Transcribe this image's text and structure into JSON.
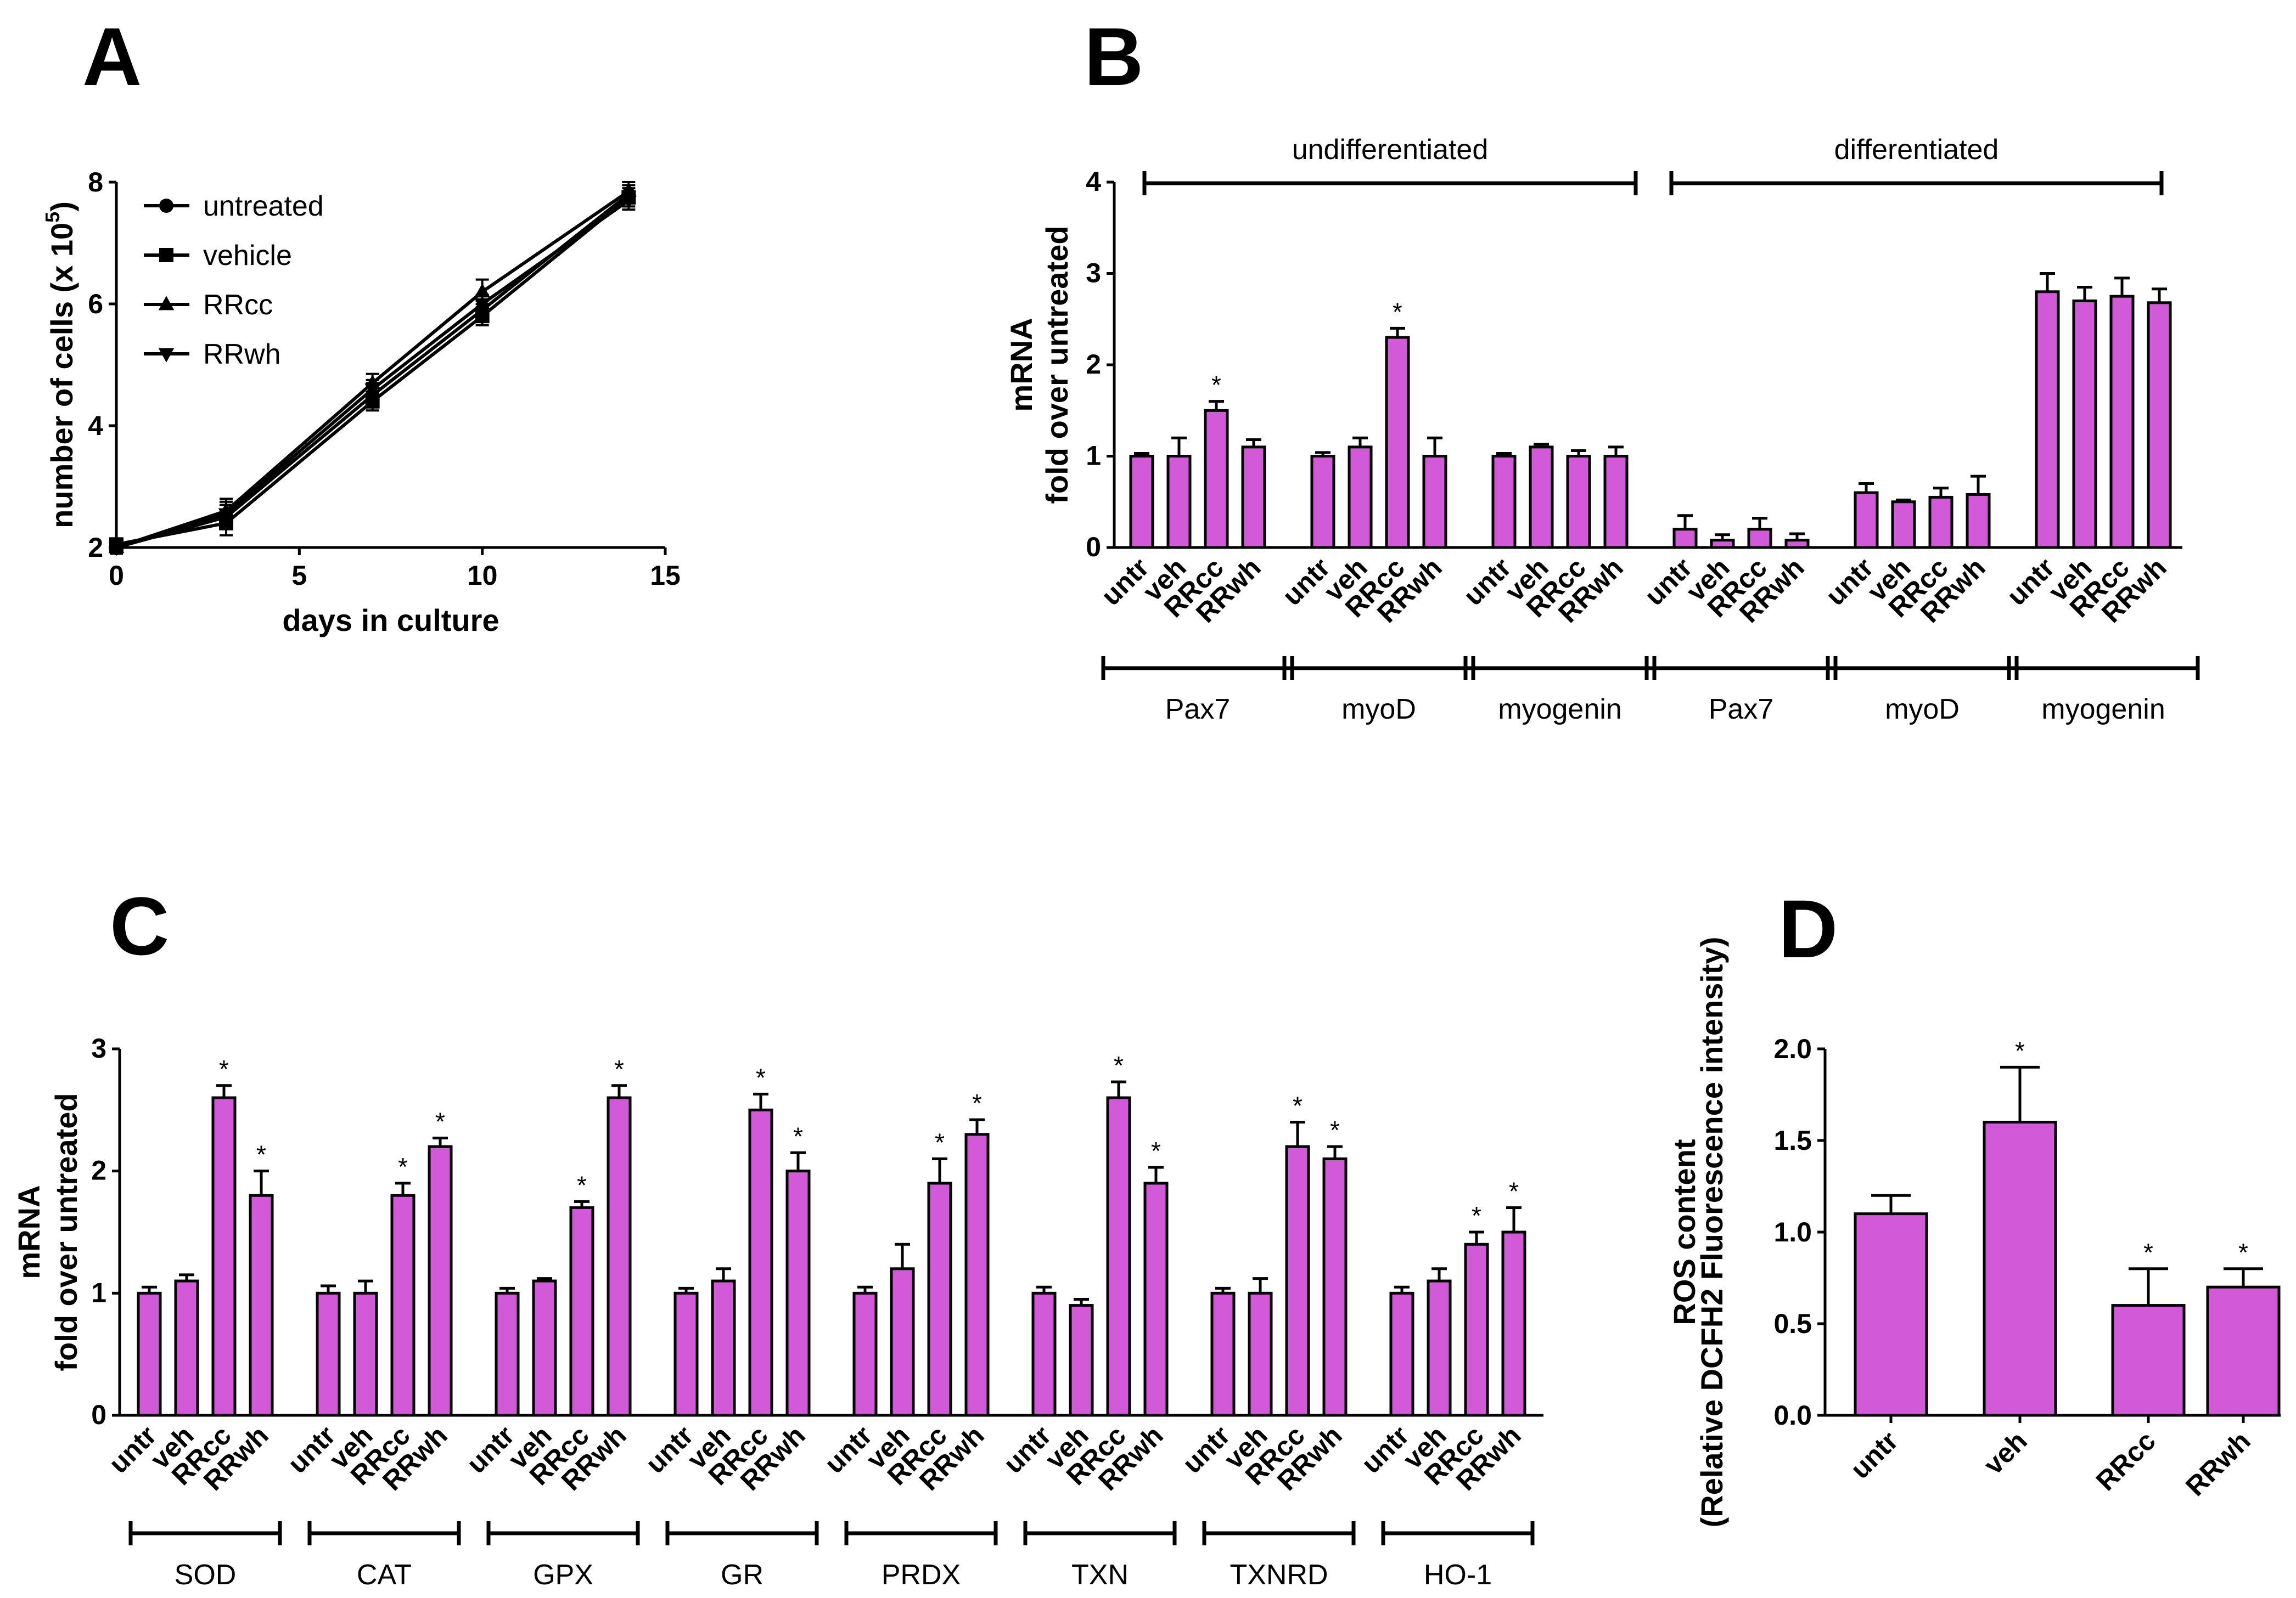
{
  "colors": {
    "bar": "#d25ad8",
    "stroke": "#000000",
    "background": "#ffffff"
  },
  "chart_data": [
    {
      "panel": "A",
      "type": "line",
      "xlabel": "days in culture",
      "ylabel": "number of cells (x 10",
      "ylabel_sup": "5",
      "ylabel_end": ")",
      "xlim": [
        0,
        15
      ],
      "ylim": [
        2,
        8
      ],
      "xticks": [
        0,
        5,
        10,
        15
      ],
      "yticks": [
        2,
        4,
        6,
        8
      ],
      "legend_position": "top-left",
      "series": [
        {
          "name": "untreated",
          "marker": "circle",
          "x": [
            0,
            3,
            7,
            10,
            14
          ],
          "y": [
            2.0,
            2.5,
            4.5,
            5.9,
            7.8
          ],
          "err": [
            0.1,
            0.2,
            0.2,
            0.15,
            0.15
          ]
        },
        {
          "name": "vehicle",
          "marker": "square",
          "x": [
            0,
            3,
            7,
            10,
            14
          ],
          "y": [
            2.05,
            2.4,
            4.4,
            5.8,
            7.75
          ],
          "err": [
            0.1,
            0.2,
            0.15,
            0.15,
            0.15
          ]
        },
        {
          "name": "RRcc",
          "marker": "triangle-up",
          "x": [
            0,
            3,
            7,
            10,
            14
          ],
          "y": [
            2.0,
            2.6,
            4.7,
            6.2,
            7.85
          ],
          "err": [
            0.1,
            0.2,
            0.15,
            0.2,
            0.15
          ]
        },
        {
          "name": "RRwh",
          "marker": "triangle-down",
          "x": [
            0,
            3,
            7,
            10,
            14
          ],
          "y": [
            2.0,
            2.55,
            4.6,
            6.0,
            7.7
          ],
          "err": [
            0.1,
            0.2,
            0.15,
            0.15,
            0.15
          ]
        }
      ]
    },
    {
      "panel": "B",
      "type": "bar",
      "ylabel_line1": "mRNA",
      "ylabel_line2": "fold over untreated",
      "ylim": [
        0,
        4
      ],
      "yticks": [
        0,
        1,
        2,
        3,
        4
      ],
      "conditions": [
        "untr",
        "veh",
        "RRcc",
        "RRwh"
      ],
      "super_groups": [
        "undifferentiated",
        "differentiated"
      ],
      "groups": [
        {
          "name": "Pax7",
          "values": [
            1.0,
            1.0,
            1.5,
            1.1
          ],
          "errors": [
            0.03,
            0.2,
            0.1,
            0.08
          ],
          "sig": [
            false,
            false,
            true,
            false
          ]
        },
        {
          "name": "myoD",
          "values": [
            1.0,
            1.1,
            2.3,
            1.0
          ],
          "errors": [
            0.04,
            0.1,
            0.1,
            0.2
          ],
          "sig": [
            false,
            false,
            true,
            false
          ]
        },
        {
          "name": "myogenin",
          "values": [
            1.0,
            1.1,
            1.0,
            1.0
          ],
          "errors": [
            0.03,
            0.03,
            0.06,
            0.1
          ],
          "sig": [
            false,
            false,
            false,
            false
          ]
        },
        {
          "name": "Pax7",
          "values": [
            0.2,
            0.08,
            0.2,
            0.08
          ],
          "errors": [
            0.15,
            0.06,
            0.12,
            0.07
          ],
          "sig": [
            false,
            false,
            false,
            false
          ]
        },
        {
          "name": "myoD",
          "values": [
            0.6,
            0.5,
            0.55,
            0.58
          ],
          "errors": [
            0.1,
            0.02,
            0.1,
            0.2
          ],
          "sig": [
            false,
            false,
            false,
            false
          ]
        },
        {
          "name": "myogenin",
          "values": [
            2.8,
            2.7,
            2.75,
            2.68
          ],
          "errors": [
            0.2,
            0.15,
            0.2,
            0.15
          ],
          "sig": [
            false,
            false,
            false,
            false
          ]
        }
      ]
    },
    {
      "panel": "C",
      "type": "bar",
      "ylabel_line1": "mRNA",
      "ylabel_line2": "fold over untreated",
      "ylim": [
        0,
        3
      ],
      "yticks": [
        0,
        1,
        2,
        3
      ],
      "conditions": [
        "untr",
        "veh",
        "RRcc",
        "RRwh"
      ],
      "groups": [
        {
          "name": "SOD",
          "values": [
            1.0,
            1.1,
            2.6,
            1.8
          ],
          "errors": [
            0.05,
            0.05,
            0.1,
            0.2
          ],
          "sig": [
            false,
            false,
            true,
            true
          ]
        },
        {
          "name": "CAT",
          "values": [
            1.0,
            1.0,
            1.8,
            2.2
          ],
          "errors": [
            0.06,
            0.1,
            0.1,
            0.07
          ],
          "sig": [
            false,
            false,
            true,
            true
          ]
        },
        {
          "name": "GPX",
          "values": [
            1.0,
            1.1,
            1.7,
            2.6
          ],
          "errors": [
            0.04,
            0.02,
            0.05,
            0.1
          ],
          "sig": [
            false,
            false,
            true,
            true
          ]
        },
        {
          "name": "GR",
          "values": [
            1.0,
            1.1,
            2.5,
            2.0
          ],
          "errors": [
            0.04,
            0.1,
            0.13,
            0.15
          ],
          "sig": [
            false,
            false,
            true,
            true
          ]
        },
        {
          "name": "PRDX",
          "values": [
            1.0,
            1.2,
            1.9,
            2.3
          ],
          "errors": [
            0.05,
            0.2,
            0.2,
            0.12
          ],
          "sig": [
            false,
            false,
            true,
            true
          ]
        },
        {
          "name": "TXN",
          "values": [
            1.0,
            0.9,
            2.6,
            1.9
          ],
          "errors": [
            0.05,
            0.05,
            0.13,
            0.13
          ],
          "sig": [
            false,
            false,
            true,
            true
          ]
        },
        {
          "name": "TXNRD",
          "values": [
            1.0,
            1.0,
            2.2,
            2.1
          ],
          "errors": [
            0.04,
            0.12,
            0.2,
            0.1
          ],
          "sig": [
            false,
            false,
            true,
            true
          ]
        },
        {
          "name": "HO-1",
          "values": [
            1.0,
            1.1,
            1.4,
            1.5
          ],
          "errors": [
            0.05,
            0.1,
            0.1,
            0.2
          ],
          "sig": [
            false,
            false,
            true,
            true
          ]
        }
      ]
    },
    {
      "panel": "D",
      "type": "bar",
      "ylabel_line1": "ROS content",
      "ylabel_line2": "(Relative DCFH2 Fluorescence intensity)",
      "ylim": [
        0,
        2.0
      ],
      "yticks": [
        "0.0",
        "0.5",
        "1.0",
        "1.5",
        "2.0"
      ],
      "categories": [
        "untr",
        "veh",
        "RRcc",
        "RRwh"
      ],
      "values": [
        1.1,
        1.6,
        0.6,
        0.7
      ],
      "errors": [
        0.1,
        0.3,
        0.2,
        0.1
      ],
      "sig": [
        false,
        true,
        true,
        true
      ]
    }
  ],
  "significance_marker": "*"
}
